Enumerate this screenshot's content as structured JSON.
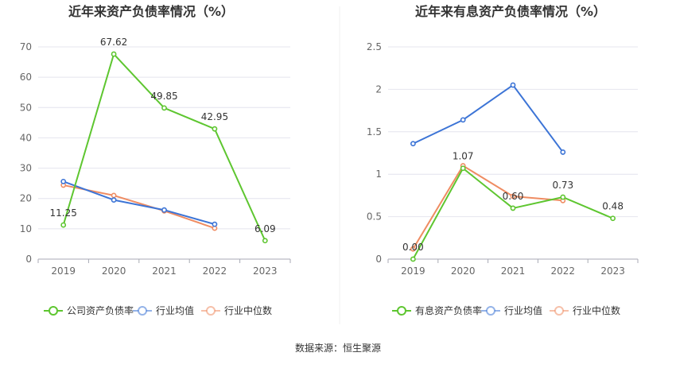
{
  "source_label": "数据来源：恒生聚源",
  "colors": {
    "company": "#5ec630",
    "industry_avg": "#3c74d6",
    "industry_median": "#ef8c62",
    "grid": "#e4e4ee",
    "axis": "#a8aab4",
    "text": "#333333",
    "tick_text": "#666666"
  },
  "chart_data": [
    {
      "type": "line",
      "title": "近年来资产负债率情况（%）",
      "xlabel": "",
      "ylabel": "",
      "categories": [
        "2019",
        "2020",
        "2021",
        "2022",
        "2023"
      ],
      "ylim": [
        0,
        70
      ],
      "yticks": [
        0,
        10,
        20,
        30,
        40,
        50,
        60,
        70
      ],
      "grid": true,
      "legend_position": "bottom",
      "series": [
        {
          "name": "公司资产负债率",
          "color_key": "company",
          "values": [
            11.25,
            67.62,
            49.85,
            42.95,
            6.09
          ],
          "labels": [
            "11.25",
            "67.62",
            "49.85",
            "42.95",
            "6.09"
          ]
        },
        {
          "name": "行业均值",
          "color_key": "industry_avg",
          "values": [
            25.6,
            19.5,
            16.2,
            11.5,
            null
          ]
        },
        {
          "name": "行业中位数",
          "color_key": "industry_median",
          "values": [
            24.4,
            21.0,
            15.9,
            10.2,
            null
          ]
        }
      ]
    },
    {
      "type": "line",
      "title": "近年来有息资产负债率情况（%）",
      "xlabel": "",
      "ylabel": "",
      "categories": [
        "2019",
        "2020",
        "2021",
        "2022",
        "2023"
      ],
      "ylim": [
        0,
        2.5
      ],
      "yticks": [
        0,
        0.5,
        1,
        1.5,
        2,
        2.5
      ],
      "grid": true,
      "legend_position": "bottom",
      "series": [
        {
          "name": "有息资产负债率",
          "color_key": "company",
          "values": [
            0.0,
            1.07,
            0.6,
            0.73,
            0.48
          ],
          "labels": [
            "0.00",
            "1.07",
            "0.60",
            "0.73",
            "0.48"
          ]
        },
        {
          "name": "行业均值",
          "color_key": "industry_avg",
          "values": [
            1.36,
            1.64,
            2.05,
            1.26,
            null
          ]
        },
        {
          "name": "行业中位数",
          "color_key": "industry_median",
          "values": [
            0.12,
            1.1,
            0.74,
            0.69,
            null
          ]
        }
      ]
    }
  ]
}
